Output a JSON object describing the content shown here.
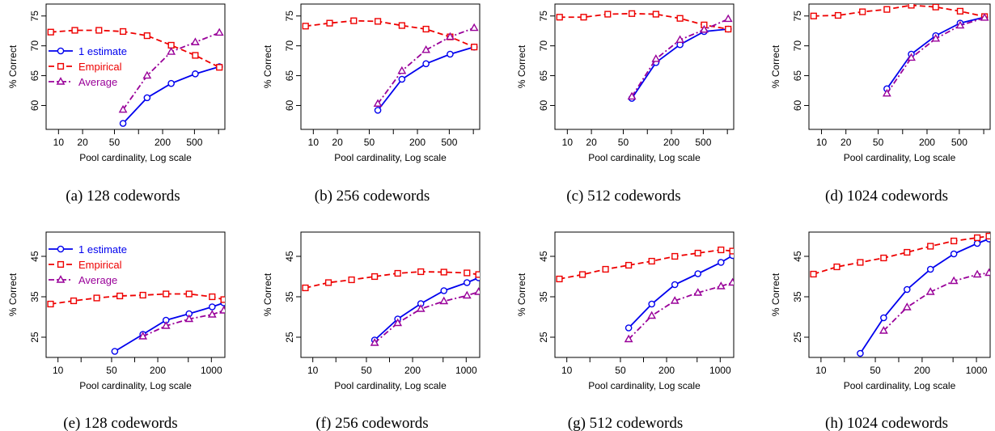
{
  "figure": {
    "panels": [
      {
        "caption": "(a)  128 codewords"
      },
      {
        "caption": "(b)  256 codewords"
      },
      {
        "caption": "(c)  512 codewords"
      },
      {
        "caption": "(d)  1024 codewords"
      },
      {
        "caption": "(e)  128 codewords"
      },
      {
        "caption": "(f)  256 codewords"
      },
      {
        "caption": "(g)  512 codewords"
      },
      {
        "caption": "(h)  1024 codewords"
      }
    ]
  },
  "colors": {
    "one_estimate": "#0000ee",
    "empirical": "#ee0000",
    "average": "#990099"
  },
  "chart_data": [
    {
      "type": "line",
      "xscale": "log",
      "xlim": [
        7,
        1200
      ],
      "ylim": [
        56,
        77
      ],
      "xticks": [
        10,
        20,
        50,
        100,
        200,
        500,
        1000
      ],
      "xticklabels": [
        "10",
        "20",
        "50",
        "",
        "200",
        "500",
        ""
      ],
      "yticks": [
        60,
        65,
        70,
        75
      ],
      "yticklabels": [
        "60",
        "65",
        "70",
        "75"
      ],
      "xlabel": "Pool cardinality, Log scale",
      "ylabel": "% Correct",
      "legend": "top-left",
      "series": [
        {
          "name": "1 estimate",
          "x": [
            64,
            128,
            256,
            512,
            1024
          ],
          "y": [
            57,
            61.3,
            63.7,
            65.3,
            66.5
          ]
        },
        {
          "name": "Empirical",
          "x": [
            8,
            16,
            32,
            64,
            128,
            256,
            512,
            1024
          ],
          "y": [
            72.3,
            72.6,
            72.6,
            72.4,
            71.7,
            70.1,
            68.4,
            66.4
          ]
        },
        {
          "name": "Average",
          "x": [
            64,
            128,
            256,
            512,
            1024
          ],
          "y": [
            59.3,
            65,
            69,
            70.6,
            72.2
          ]
        }
      ]
    },
    {
      "type": "line",
      "xscale": "log",
      "xlim": [
        7,
        1200
      ],
      "ylim": [
        56,
        77
      ],
      "xticks": [
        10,
        20,
        50,
        100,
        200,
        500,
        1000
      ],
      "xticklabels": [
        "10",
        "20",
        "50",
        "",
        "200",
        "500",
        ""
      ],
      "yticks": [
        60,
        65,
        70,
        75
      ],
      "yticklabels": [
        "60",
        "65",
        "70",
        "75"
      ],
      "xlabel": "Pool cardinality, Log scale",
      "ylabel": "% Correct",
      "series": [
        {
          "name": "1 estimate",
          "x": [
            64,
            128,
            256,
            512,
            1024
          ],
          "y": [
            59.2,
            64.4,
            67,
            68.6,
            69.8
          ]
        },
        {
          "name": "Empirical",
          "x": [
            8,
            16,
            32,
            64,
            128,
            256,
            512,
            1024
          ],
          "y": [
            73.3,
            73.8,
            74.2,
            74.1,
            73.4,
            72.8,
            71.5,
            69.8
          ]
        },
        {
          "name": "Average",
          "x": [
            64,
            128,
            256,
            512,
            1024
          ],
          "y": [
            60.3,
            65.8,
            69.3,
            71.5,
            73
          ]
        }
      ]
    },
    {
      "type": "line",
      "xscale": "log",
      "xlim": [
        7,
        1200
      ],
      "ylim": [
        56,
        77
      ],
      "xticks": [
        10,
        20,
        50,
        100,
        200,
        500,
        1000
      ],
      "xticklabels": [
        "10",
        "20",
        "50",
        "",
        "200",
        "500",
        ""
      ],
      "yticks": [
        60,
        65,
        70,
        75
      ],
      "yticklabels": [
        "60",
        "65",
        "70",
        "75"
      ],
      "xlabel": "Pool cardinality, Log scale",
      "ylabel": "% Correct",
      "series": [
        {
          "name": "1 estimate",
          "x": [
            64,
            128,
            256,
            512,
            1024
          ],
          "y": [
            61.2,
            67.2,
            70.2,
            72.4,
            72.8
          ]
        },
        {
          "name": "Empirical",
          "x": [
            8,
            16,
            32,
            64,
            128,
            256,
            512,
            1024
          ],
          "y": [
            74.8,
            74.8,
            75.3,
            75.4,
            75.3,
            74.6,
            73.5,
            72.8
          ]
        },
        {
          "name": "Average",
          "x": [
            64,
            128,
            256,
            512,
            1024
          ],
          "y": [
            61.5,
            67.8,
            71,
            72.7,
            74.5
          ]
        }
      ]
    },
    {
      "type": "line",
      "xscale": "log",
      "xlim": [
        7,
        1200
      ],
      "ylim": [
        56,
        77
      ],
      "xticks": [
        10,
        20,
        50,
        100,
        200,
        500,
        1000
      ],
      "xticklabels": [
        "10",
        "20",
        "50",
        "",
        "200",
        "500",
        ""
      ],
      "yticks": [
        60,
        65,
        70,
        75
      ],
      "yticklabels": [
        "60",
        "65",
        "70",
        "75"
      ],
      "xlabel": "Pool cardinality, Log scale",
      "ylabel": "% Correct",
      "series": [
        {
          "name": "1 estimate",
          "x": [
            64,
            128,
            256,
            512,
            1024
          ],
          "y": [
            62.8,
            68.6,
            71.7,
            73.8,
            74.8
          ]
        },
        {
          "name": "Empirical",
          "x": [
            8,
            16,
            32,
            64,
            128,
            256,
            512,
            1024
          ],
          "y": [
            75,
            75.1,
            75.7,
            76.1,
            76.8,
            76.5,
            75.8,
            74.9
          ]
        },
        {
          "name": "Average",
          "x": [
            64,
            128,
            256,
            512,
            1024
          ],
          "y": [
            62,
            68,
            71.2,
            73.4,
            74.7
          ]
        }
      ]
    },
    {
      "type": "line",
      "xscale": "log",
      "xlim": [
        7,
        1500
      ],
      "ylim": [
        20,
        51
      ],
      "xticks": [
        10,
        20,
        50,
        100,
        200,
        500,
        1000
      ],
      "xticklabels": [
        "10",
        "",
        "50",
        "",
        "200",
        "",
        "1000"
      ],
      "yticks": [
        25,
        35,
        45
      ],
      "yticklabels": [
        "25",
        "35",
        "45"
      ],
      "xlabel": "Pool cardinality, Log scale",
      "ylabel": "% Correct",
      "legend": "top-left",
      "series": [
        {
          "name": "1 estimate",
          "x": [
            55,
            128,
            256,
            512,
            1024,
            1450
          ],
          "y": [
            21.5,
            25.7,
            29.2,
            30.8,
            32.5,
            33.5
          ]
        },
        {
          "name": "Empirical",
          "x": [
            8,
            16,
            32,
            64,
            128,
            256,
            512,
            1024,
            1450
          ],
          "y": [
            33.2,
            34,
            34.7,
            35.2,
            35.4,
            35.7,
            35.7,
            35,
            34.3
          ]
        },
        {
          "name": "Average",
          "x": [
            128,
            256,
            512,
            1024,
            1450
          ],
          "y": [
            25.2,
            27.8,
            29.5,
            30.6,
            31.6
          ]
        }
      ]
    },
    {
      "type": "line",
      "xscale": "log",
      "xlim": [
        7,
        1500
      ],
      "ylim": [
        20,
        51
      ],
      "xticks": [
        10,
        20,
        50,
        100,
        200,
        500,
        1000
      ],
      "xticklabels": [
        "10",
        "",
        "50",
        "",
        "200",
        "",
        "1000"
      ],
      "yticks": [
        25,
        35,
        45
      ],
      "yticklabels": [
        "25",
        "35",
        "45"
      ],
      "xlabel": "Pool cardinality, Log scale",
      "ylabel": "% Correct",
      "series": [
        {
          "name": "1 estimate",
          "x": [
            64,
            128,
            256,
            512,
            1024,
            1450
          ],
          "y": [
            24.3,
            29.5,
            33.3,
            36.5,
            38.5,
            39.7
          ]
        },
        {
          "name": "Empirical",
          "x": [
            8,
            16,
            32,
            64,
            128,
            256,
            512,
            1024,
            1450
          ],
          "y": [
            37.2,
            38.5,
            39.2,
            40,
            40.8,
            41.2,
            41.1,
            40.9,
            40.5
          ]
        },
        {
          "name": "Average",
          "x": [
            64,
            128,
            256,
            512,
            1024,
            1450
          ],
          "y": [
            23.6,
            28.5,
            32,
            33.9,
            35.3,
            36.2
          ]
        }
      ]
    },
    {
      "type": "line",
      "xscale": "log",
      "xlim": [
        7,
        1500
      ],
      "ylim": [
        20,
        51
      ],
      "xticks": [
        10,
        20,
        50,
        100,
        200,
        500,
        1000
      ],
      "xticklabels": [
        "10",
        "",
        "50",
        "",
        "200",
        "",
        "1000"
      ],
      "yticks": [
        25,
        35,
        45
      ],
      "yticklabels": [
        "25",
        "35",
        "45"
      ],
      "xlabel": "Pool cardinality, Log scale",
      "ylabel": "% Correct",
      "series": [
        {
          "name": "1 estimate",
          "x": [
            64,
            128,
            256,
            512,
            1024,
            1450
          ],
          "y": [
            27.3,
            33.2,
            38,
            40.7,
            43.5,
            45.2
          ]
        },
        {
          "name": "Empirical",
          "x": [
            8,
            16,
            32,
            64,
            128,
            256,
            512,
            1024,
            1450
          ],
          "y": [
            39.4,
            40.5,
            41.8,
            42.8,
            43.8,
            45,
            45.8,
            46.6,
            46.3
          ]
        },
        {
          "name": "Average",
          "x": [
            64,
            128,
            256,
            512,
            1024,
            1450
          ],
          "y": [
            24.5,
            30.3,
            34,
            36,
            37.6,
            38.5
          ]
        }
      ]
    },
    {
      "type": "line",
      "xscale": "log",
      "xlim": [
        7,
        1500
      ],
      "ylim": [
        20,
        51
      ],
      "xticks": [
        10,
        20,
        50,
        100,
        200,
        500,
        1000
      ],
      "xticklabels": [
        "10",
        "",
        "50",
        "",
        "200",
        "",
        "1000"
      ],
      "yticks": [
        25,
        35,
        45
      ],
      "yticklabels": [
        "25",
        "35",
        "45"
      ],
      "xlabel": "Pool cardinality, Log scale",
      "ylabel": "% Correct",
      "series": [
        {
          "name": "1 estimate",
          "x": [
            32,
            64,
            128,
            256,
            512,
            1024,
            1450
          ],
          "y": [
            21,
            29.8,
            36.8,
            41.8,
            45.6,
            48.2,
            49.3
          ]
        },
        {
          "name": "Empirical",
          "x": [
            8,
            16,
            32,
            64,
            128,
            256,
            512,
            1024,
            1450
          ],
          "y": [
            40.6,
            42.4,
            43.5,
            44.6,
            46,
            47.5,
            48.8,
            49.6,
            50
          ]
        },
        {
          "name": "Average",
          "x": [
            64,
            128,
            256,
            512,
            1024,
            1450
          ],
          "y": [
            26.6,
            32.4,
            36.2,
            38.9,
            40.5,
            40.9
          ]
        }
      ]
    }
  ]
}
